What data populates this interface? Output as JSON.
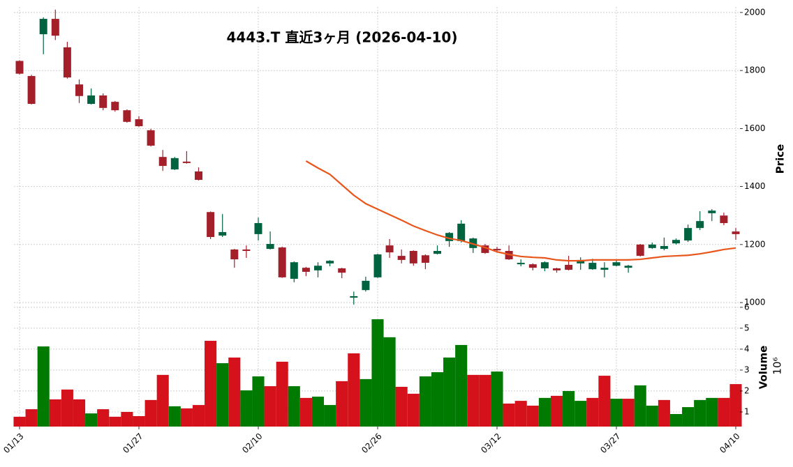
{
  "chart_data": {
    "type": "candlestick",
    "title": "4443.T  直近3ヶ月  (2026-04-10)",
    "categories": [
      "01/13",
      null,
      null,
      null,
      null,
      null,
      null,
      null,
      null,
      null,
      "01/27",
      null,
      null,
      null,
      null,
      null,
      null,
      null,
      null,
      null,
      "02/10",
      null,
      null,
      null,
      null,
      null,
      null,
      null,
      null,
      null,
      "02/26",
      null,
      null,
      null,
      null,
      null,
      null,
      null,
      null,
      null,
      "03/12",
      null,
      null,
      null,
      null,
      null,
      null,
      null,
      null,
      null,
      "03/27",
      null,
      null,
      null,
      null,
      null,
      null,
      null,
      null,
      null,
      "04/10"
    ],
    "open": [
      1833,
      1781,
      1925,
      1978,
      1880,
      1752,
      1685,
      1714,
      1692,
      1663,
      1632,
      1594,
      1502,
      1459,
      1486,
      1452,
      1312,
      1231,
      1183,
      1183,
      1236,
      1185,
      1190,
      1082,
      1120,
      1111,
      1135,
      1118,
      1017,
      1043,
      1087,
      1197,
      1161,
      1178,
      1163,
      1168,
      1212,
      1212,
      1188,
      1197,
      1185,
      1178,
      1132,
      1132,
      1118,
      1118,
      1130,
      1135,
      1115,
      1113,
      1127,
      1120,
      1200,
      1188,
      1185,
      1204,
      1214,
      1257,
      1308,
      1300,
      1245
    ],
    "high": [
      1835,
      1785,
      1983,
      2010,
      1899,
      1769,
      1738,
      1721,
      1695,
      1666,
      1642,
      1599,
      1526,
      1502,
      1522,
      1466,
      1314,
      1305,
      1185,
      1197,
      1293,
      1245,
      1193,
      1142,
      1123,
      1139,
      1146,
      1120,
      1038,
      1089,
      1168,
      1219,
      1183,
      1180,
      1166,
      1197,
      1243,
      1284,
      1224,
      1202,
      1192,
      1197,
      1149,
      1135,
      1142,
      1120,
      1161,
      1156,
      1151,
      1139,
      1147,
      1130,
      1202,
      1207,
      1224,
      1221,
      1269,
      1315,
      1322,
      1310,
      1257
    ],
    "low": [
      1786,
      1683,
      1856,
      1905,
      1772,
      1688,
      1683,
      1663,
      1658,
      1620,
      1606,
      1538,
      1454,
      1457,
      1479,
      1421,
      1219,
      1226,
      1120,
      1154,
      1214,
      1183,
      1085,
      1070,
      1091,
      1087,
      1125,
      1084,
      993,
      1038,
      1085,
      1154,
      1135,
      1127,
      1115,
      1166,
      1192,
      1207,
      1171,
      1168,
      1173,
      1147,
      1125,
      1111,
      1108,
      1103,
      1111,
      1113,
      1113,
      1087,
      1125,
      1103,
      1159,
      1185,
      1180,
      1200,
      1209,
      1250,
      1281,
      1267,
      1216
    ],
    "close": [
      1789,
      1685,
      1978,
      1920,
      1776,
      1712,
      1714,
      1671,
      1663,
      1623,
      1608,
      1541,
      1471,
      1498,
      1481,
      1423,
      1226,
      1243,
      1149,
      1178,
      1274,
      1202,
      1087,
      1139,
      1106,
      1127,
      1144,
      1103,
      1022,
      1075,
      1166,
      1173,
      1147,
      1135,
      1137,
      1178,
      1240,
      1272,
      1221,
      1171,
      1180,
      1149,
      1137,
      1120,
      1139,
      1111,
      1113,
      1147,
      1137,
      1120,
      1139,
      1127,
      1161,
      1200,
      1195,
      1216,
      1257,
      1281,
      1317,
      1274,
      1236
    ],
    "up_color": "#006340",
    "down_color": "#a3202b",
    "ylim": [
      993,
      2019
    ],
    "yticks": [
      1000,
      1200,
      1400,
      1600,
      1800,
      2000
    ],
    "ylabel": "Price",
    "grid": true,
    "ma": {
      "color": "#e8561c",
      "values": [
        null,
        null,
        null,
        null,
        null,
        null,
        null,
        null,
        null,
        null,
        null,
        null,
        null,
        null,
        null,
        null,
        null,
        null,
        null,
        null,
        null,
        null,
        null,
        null,
        1488,
        1464,
        1442,
        1406,
        1370,
        1341,
        1322,
        1303,
        1284,
        1264,
        1248,
        1233,
        1221,
        1214,
        1202,
        1190,
        1175,
        1166,
        1159,
        1156,
        1154,
        1147,
        1144,
        1144,
        1147,
        1147,
        1147,
        1147,
        1149,
        1154,
        1159,
        1161,
        1163,
        1168,
        1175,
        1183,
        1188
      ]
    },
    "volume": {
      "values": [
        0.77,
        1.13,
        4.13,
        1.6,
        2.07,
        1.6,
        0.93,
        1.13,
        0.77,
        1.0,
        0.8,
        1.57,
        2.77,
        1.27,
        1.17,
        1.33,
        4.4,
        3.33,
        3.6,
        2.03,
        2.7,
        2.23,
        3.4,
        2.23,
        1.67,
        1.73,
        1.33,
        2.47,
        3.8,
        2.57,
        5.43,
        4.57,
        2.2,
        1.87,
        2.7,
        2.9,
        3.6,
        4.2,
        2.77,
        2.77,
        2.93,
        1.4,
        1.53,
        1.3,
        1.67,
        1.77,
        2.0,
        1.53,
        1.67,
        2.73,
        1.63,
        1.63,
        2.27,
        1.3,
        1.57,
        0.9,
        1.23,
        1.57,
        1.67,
        1.67,
        2.33
      ],
      "up_color": "#007a00",
      "down_color": "#d5121b",
      "ylim": [
        0.3,
        6.03
      ],
      "yticks": [
        1,
        2,
        3,
        4,
        5,
        6
      ],
      "ylabel": "Volume",
      "offset_label": "10⁶"
    }
  }
}
